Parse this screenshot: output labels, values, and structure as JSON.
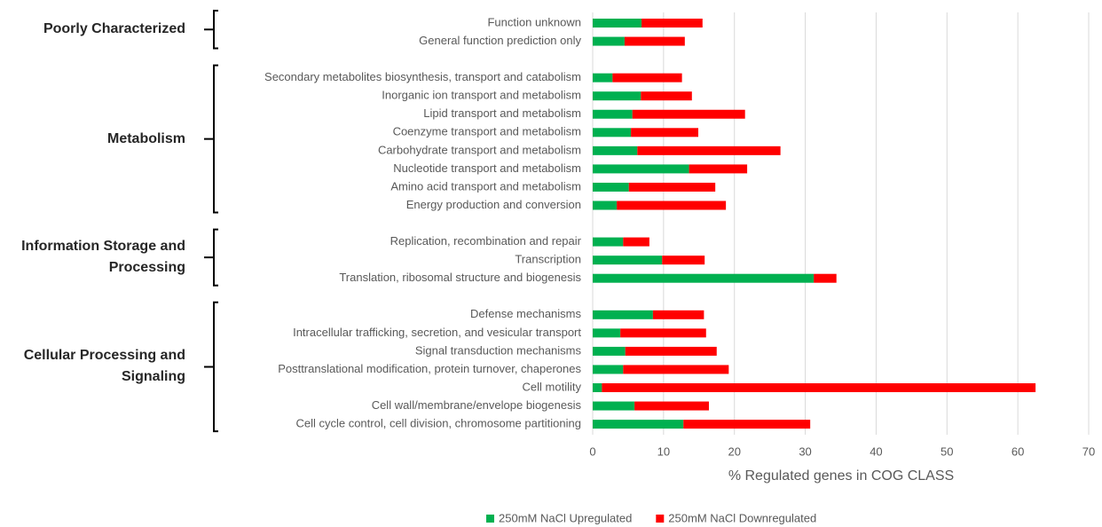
{
  "chart_data": {
    "type": "stacked-bar-horizontal",
    "x_label": "% Regulated genes in COG CLASS",
    "categories": [
      "Function unknown",
      "General function prediction only",
      null,
      "Secondary metabolites biosynthesis, transport and catabolism",
      "Inorganic ion transport and metabolism",
      "Lipid transport and metabolism",
      "Coenzyme transport and metabolism",
      "Carbohydrate transport and metabolism",
      "Nucleotide transport and metabolism",
      "Amino acid transport and metabolism",
      "Energy production and conversion",
      null,
      "Replication, recombination and repair",
      "Transcription",
      "Translation, ribosomal structure and biogenesis",
      null,
      "Defense mechanisms",
      "Intracellular trafficking, secretion, and vesicular transport",
      "Signal transduction mechanisms",
      "Posttranslational modification, protein turnover, chaperones",
      "Cell motility",
      "Cell wall/membrane/envelope biogenesis",
      "Cell cycle control, cell division, chromosome partitioning"
    ],
    "groups": [
      "Poorly Characterized",
      "Metabolism",
      "Information Storage and Processing",
      "Cellular Processing and Signaling"
    ],
    "series": [
      {
        "name": "250mM NaCl Upregulated",
        "color": "#00b050",
        "values": [
          6.9,
          4.5,
          null,
          2.8,
          6.8,
          5.6,
          5.4,
          6.3,
          13.6,
          5.1,
          3.4,
          null,
          4.3,
          9.8,
          31.2,
          null,
          8.5,
          3.9,
          4.6,
          4.3,
          1.3,
          5.9,
          12.8
        ]
      },
      {
        "name": "250mM NaCl Downregulated",
        "color": "#ff0000",
        "values": [
          8.6,
          8.5,
          null,
          9.8,
          7.2,
          15.9,
          9.5,
          20.2,
          8.2,
          12.2,
          15.4,
          null,
          3.7,
          6.0,
          3.2,
          null,
          7.2,
          12.1,
          12.9,
          14.9,
          61.2,
          10.5,
          17.9
        ]
      }
    ],
    "xlim": [
      0,
      70
    ],
    "xticks": [
      0,
      10,
      20,
      30,
      40,
      50,
      60,
      70
    ],
    "grid": true,
    "legend": "bottom"
  }
}
